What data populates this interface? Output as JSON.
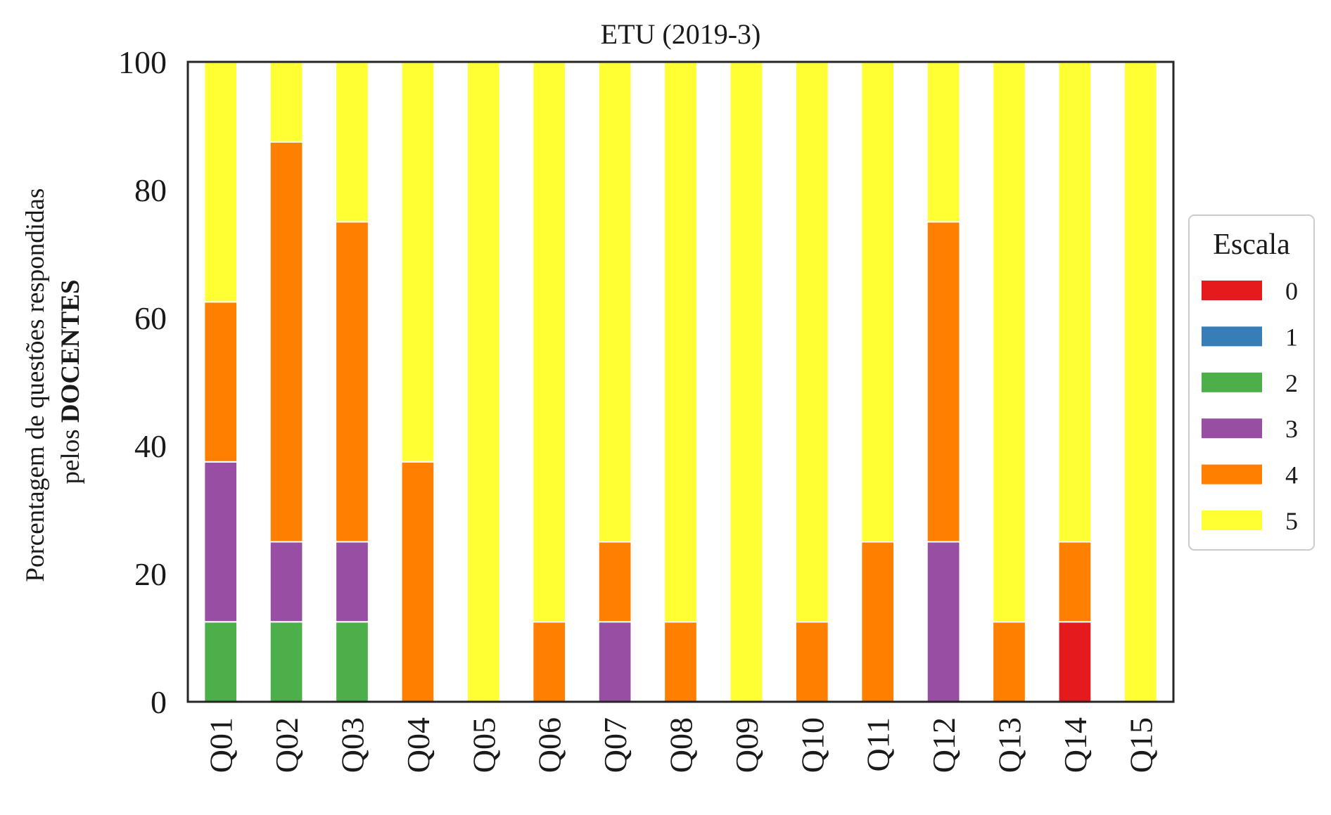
{
  "chart_data": {
    "type": "bar",
    "stacked": true,
    "title": "ETU (2019-3)",
    "ylabel_line1": "Porcentagem de questões respondidas",
    "ylabel_line2_prefix": "pelos ",
    "ylabel_line2_bold": "DOCENTES",
    "xlabel": "",
    "ylim": [
      0,
      100
    ],
    "yticks": [
      "0",
      "20",
      "40",
      "60",
      "80",
      "100"
    ],
    "grid": false,
    "legend": {
      "title": "Escala",
      "position": "right"
    },
    "categories": [
      "Q01",
      "Q02",
      "Q03",
      "Q04",
      "Q05",
      "Q06",
      "Q07",
      "Q08",
      "Q09",
      "Q10",
      "Q11",
      "Q12",
      "Q13",
      "Q14",
      "Q15"
    ],
    "series": [
      {
        "name": "0",
        "color": "#e41a1c",
        "values": [
          0,
          0,
          0,
          0,
          0,
          0,
          0,
          0,
          0,
          0,
          0,
          0,
          0,
          12.5,
          0
        ]
      },
      {
        "name": "1",
        "color": "#377eb8",
        "values": [
          0,
          0,
          0,
          0,
          0,
          0,
          0,
          0,
          0,
          0,
          0,
          0,
          0,
          0,
          0
        ]
      },
      {
        "name": "2",
        "color": "#4daf4a",
        "values": [
          12.5,
          12.5,
          12.5,
          0,
          0,
          0,
          0,
          0,
          0,
          0,
          0,
          0,
          0,
          0,
          0
        ]
      },
      {
        "name": "3",
        "color": "#984ea3",
        "values": [
          25,
          12.5,
          12.5,
          0,
          0,
          0,
          12.5,
          0,
          0,
          0,
          0,
          25,
          0,
          0,
          0
        ]
      },
      {
        "name": "4",
        "color": "#ff7f00",
        "values": [
          25,
          62.5,
          50,
          37.5,
          0,
          12.5,
          12.5,
          12.5,
          0,
          12.5,
          25,
          50,
          12.5,
          12.5,
          0
        ]
      },
      {
        "name": "5",
        "color": "#ffff33",
        "values": [
          37.5,
          12.5,
          25,
          62.5,
          100,
          87.5,
          75,
          87.5,
          100,
          87.5,
          75,
          25,
          87.5,
          75,
          100
        ]
      }
    ]
  }
}
